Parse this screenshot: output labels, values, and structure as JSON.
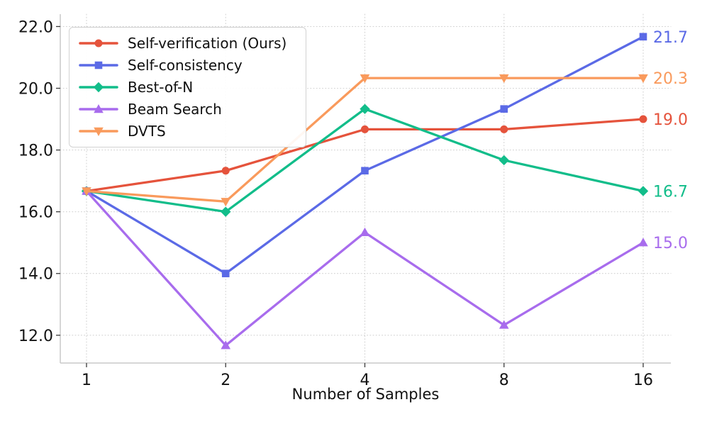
{
  "chart_data": {
    "type": "line",
    "title": "",
    "xlabel": "Number of Samples",
    "ylabel": "",
    "x": [
      1,
      2,
      4,
      8,
      16
    ],
    "x_tick_labels": [
      "1",
      "2",
      "4",
      "8",
      "16"
    ],
    "x_scale": "log2",
    "y_ticks": [
      12.0,
      14.0,
      16.0,
      18.0,
      20.0,
      22.0
    ],
    "y_tick_labels": [
      "12.0",
      "14.0",
      "16.0",
      "18.0",
      "20.0",
      "22.0"
    ],
    "ylim": [
      11.1,
      22.4
    ],
    "grid": true,
    "grid_style": "dotted",
    "legend_position": "upper left",
    "series": [
      {
        "name": "Self-verification (Ours)",
        "color": "#e5533c",
        "marker": "circle",
        "values": [
          16.67,
          17.33,
          18.67,
          18.67,
          19.0
        ],
        "end_label": "19.0"
      },
      {
        "name": "Self-consistency",
        "color": "#5b6ae6",
        "marker": "square",
        "values": [
          16.67,
          14.0,
          17.33,
          19.33,
          21.67
        ],
        "end_label": "21.7"
      },
      {
        "name": "Best-of-N",
        "color": "#12bd8a",
        "marker": "diamond",
        "values": [
          16.67,
          16.0,
          19.33,
          17.67,
          16.67
        ],
        "end_label": "16.7"
      },
      {
        "name": "Beam Search",
        "color": "#a86ced",
        "marker": "triangle-up",
        "values": [
          16.67,
          11.67,
          15.33,
          12.33,
          15.0
        ],
        "end_label": "15.0"
      },
      {
        "name": "DVTS",
        "color": "#f99a5c",
        "marker": "triangle-down",
        "values": [
          16.67,
          16.33,
          20.33,
          20.33,
          20.33
        ],
        "end_label": "20.3"
      }
    ]
  }
}
